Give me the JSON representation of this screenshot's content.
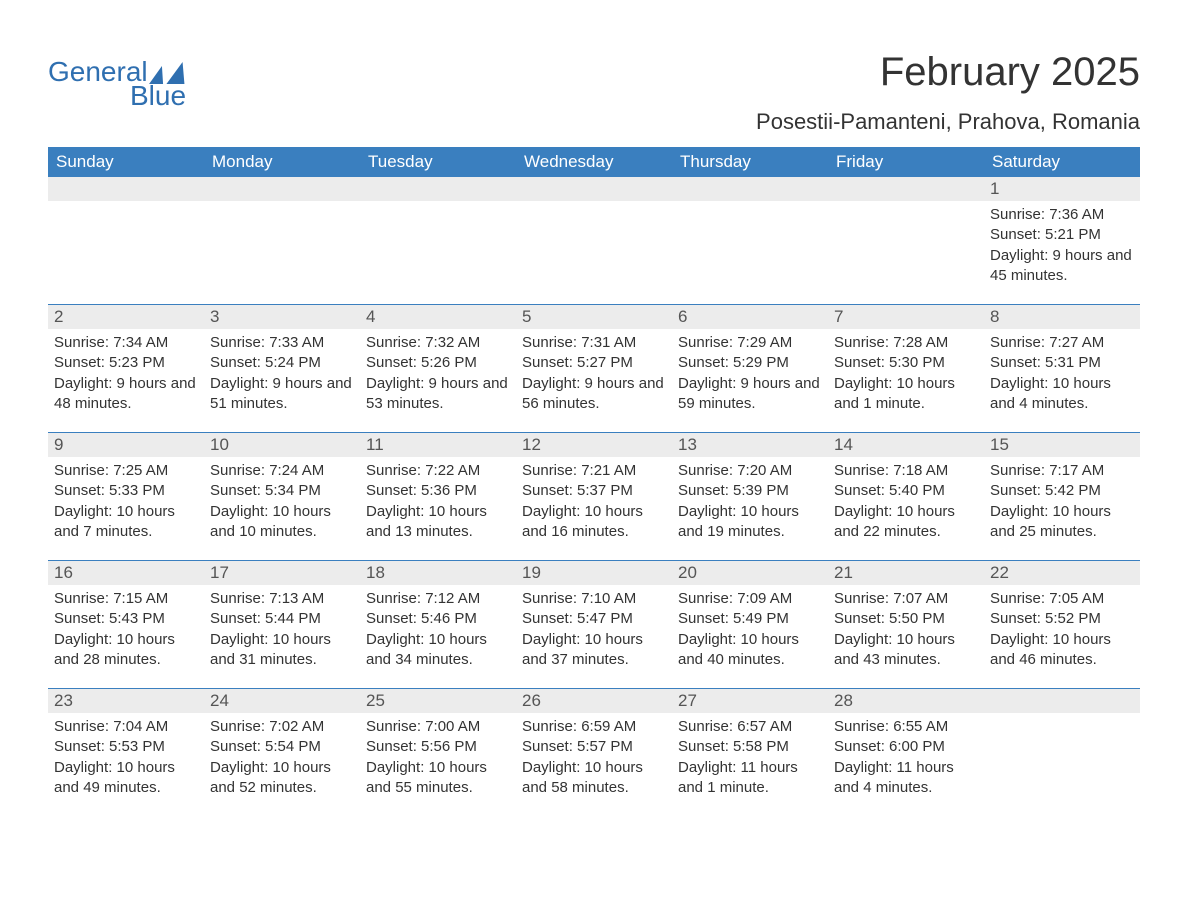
{
  "logo": {
    "text1": "General",
    "text2": "Blue"
  },
  "title": "February 2025",
  "location": "Posestii-Pamanteni, Prahova, Romania",
  "colors": {
    "header_bg": "#3a7fbf",
    "header_text": "#ffffff",
    "daynum_bg": "#ececec",
    "daynum_text": "#555555",
    "body_text": "#333333",
    "accent": "#2f6fb0",
    "page_bg": "#ffffff"
  },
  "day_headers": [
    "Sunday",
    "Monday",
    "Tuesday",
    "Wednesday",
    "Thursday",
    "Friday",
    "Saturday"
  ],
  "weeks": [
    [
      null,
      null,
      null,
      null,
      null,
      null,
      {
        "n": "1",
        "sunrise": "Sunrise: 7:36 AM",
        "sunset": "Sunset: 5:21 PM",
        "daylight": "Daylight: 9 hours and 45 minutes."
      }
    ],
    [
      {
        "n": "2",
        "sunrise": "Sunrise: 7:34 AM",
        "sunset": "Sunset: 5:23 PM",
        "daylight": "Daylight: 9 hours and 48 minutes."
      },
      {
        "n": "3",
        "sunrise": "Sunrise: 7:33 AM",
        "sunset": "Sunset: 5:24 PM",
        "daylight": "Daylight: 9 hours and 51 minutes."
      },
      {
        "n": "4",
        "sunrise": "Sunrise: 7:32 AM",
        "sunset": "Sunset: 5:26 PM",
        "daylight": "Daylight: 9 hours and 53 minutes."
      },
      {
        "n": "5",
        "sunrise": "Sunrise: 7:31 AM",
        "sunset": "Sunset: 5:27 PM",
        "daylight": "Daylight: 9 hours and 56 minutes."
      },
      {
        "n": "6",
        "sunrise": "Sunrise: 7:29 AM",
        "sunset": "Sunset: 5:29 PM",
        "daylight": "Daylight: 9 hours and 59 minutes."
      },
      {
        "n": "7",
        "sunrise": "Sunrise: 7:28 AM",
        "sunset": "Sunset: 5:30 PM",
        "daylight": "Daylight: 10 hours and 1 minute."
      },
      {
        "n": "8",
        "sunrise": "Sunrise: 7:27 AM",
        "sunset": "Sunset: 5:31 PM",
        "daylight": "Daylight: 10 hours and 4 minutes."
      }
    ],
    [
      {
        "n": "9",
        "sunrise": "Sunrise: 7:25 AM",
        "sunset": "Sunset: 5:33 PM",
        "daylight": "Daylight: 10 hours and 7 minutes."
      },
      {
        "n": "10",
        "sunrise": "Sunrise: 7:24 AM",
        "sunset": "Sunset: 5:34 PM",
        "daylight": "Daylight: 10 hours and 10 minutes."
      },
      {
        "n": "11",
        "sunrise": "Sunrise: 7:22 AM",
        "sunset": "Sunset: 5:36 PM",
        "daylight": "Daylight: 10 hours and 13 minutes."
      },
      {
        "n": "12",
        "sunrise": "Sunrise: 7:21 AM",
        "sunset": "Sunset: 5:37 PM",
        "daylight": "Daylight: 10 hours and 16 minutes."
      },
      {
        "n": "13",
        "sunrise": "Sunrise: 7:20 AM",
        "sunset": "Sunset: 5:39 PM",
        "daylight": "Daylight: 10 hours and 19 minutes."
      },
      {
        "n": "14",
        "sunrise": "Sunrise: 7:18 AM",
        "sunset": "Sunset: 5:40 PM",
        "daylight": "Daylight: 10 hours and 22 minutes."
      },
      {
        "n": "15",
        "sunrise": "Sunrise: 7:17 AM",
        "sunset": "Sunset: 5:42 PM",
        "daylight": "Daylight: 10 hours and 25 minutes."
      }
    ],
    [
      {
        "n": "16",
        "sunrise": "Sunrise: 7:15 AM",
        "sunset": "Sunset: 5:43 PM",
        "daylight": "Daylight: 10 hours and 28 minutes."
      },
      {
        "n": "17",
        "sunrise": "Sunrise: 7:13 AM",
        "sunset": "Sunset: 5:44 PM",
        "daylight": "Daylight: 10 hours and 31 minutes."
      },
      {
        "n": "18",
        "sunrise": "Sunrise: 7:12 AM",
        "sunset": "Sunset: 5:46 PM",
        "daylight": "Daylight: 10 hours and 34 minutes."
      },
      {
        "n": "19",
        "sunrise": "Sunrise: 7:10 AM",
        "sunset": "Sunset: 5:47 PM",
        "daylight": "Daylight: 10 hours and 37 minutes."
      },
      {
        "n": "20",
        "sunrise": "Sunrise: 7:09 AM",
        "sunset": "Sunset: 5:49 PM",
        "daylight": "Daylight: 10 hours and 40 minutes."
      },
      {
        "n": "21",
        "sunrise": "Sunrise: 7:07 AM",
        "sunset": "Sunset: 5:50 PM",
        "daylight": "Daylight: 10 hours and 43 minutes."
      },
      {
        "n": "22",
        "sunrise": "Sunrise: 7:05 AM",
        "sunset": "Sunset: 5:52 PM",
        "daylight": "Daylight: 10 hours and 46 minutes."
      }
    ],
    [
      {
        "n": "23",
        "sunrise": "Sunrise: 7:04 AM",
        "sunset": "Sunset: 5:53 PM",
        "daylight": "Daylight: 10 hours and 49 minutes."
      },
      {
        "n": "24",
        "sunrise": "Sunrise: 7:02 AM",
        "sunset": "Sunset: 5:54 PM",
        "daylight": "Daylight: 10 hours and 52 minutes."
      },
      {
        "n": "25",
        "sunrise": "Sunrise: 7:00 AM",
        "sunset": "Sunset: 5:56 PM",
        "daylight": "Daylight: 10 hours and 55 minutes."
      },
      {
        "n": "26",
        "sunrise": "Sunrise: 6:59 AM",
        "sunset": "Sunset: 5:57 PM",
        "daylight": "Daylight: 10 hours and 58 minutes."
      },
      {
        "n": "27",
        "sunrise": "Sunrise: 6:57 AM",
        "sunset": "Sunset: 5:58 PM",
        "daylight": "Daylight: 11 hours and 1 minute."
      },
      {
        "n": "28",
        "sunrise": "Sunrise: 6:55 AM",
        "sunset": "Sunset: 6:00 PM",
        "daylight": "Daylight: 11 hours and 4 minutes."
      },
      null
    ]
  ]
}
